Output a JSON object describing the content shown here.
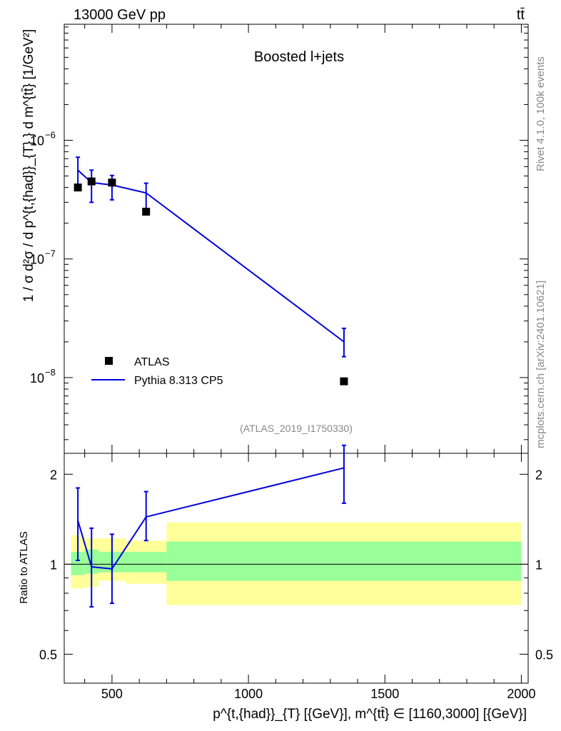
{
  "header": {
    "energy_label": "13000 GeV pp",
    "process_label": "tt̄"
  },
  "side_labels": {
    "rivet": "Rivet 4.1.0,  100k events",
    "mcplots": "mcplots.cern.ch [arXiv:2401.10621]"
  },
  "chart_data": [
    {
      "type": "line",
      "panel": "main",
      "title": "Boosted l+jets",
      "analysis_label": "(ATLAS_2019_I1750330)",
      "xlabel": "p^{t,{had}}_{T} [{GeV}], m^{tt̄} ∈ [1160,3000] [{GeV}]",
      "ylabel": "1 / σ d²σ / d p^{t,{had}}_{T} } d m^{tt̄} [1/GeV²]",
      "xlim": [
        325,
        2025
      ],
      "ylim": [
        2.3e-09,
        9.5e-06
      ],
      "yscale": "log",
      "x_ticks": [
        500,
        1000,
        1500,
        2000
      ],
      "x_tick_labels": [
        "500",
        "1000",
        "1500",
        "2000"
      ],
      "y_ticks": [
        1e-08,
        1e-07,
        1e-06
      ],
      "y_tick_labels": [
        "10",
        "10",
        "10"
      ],
      "y_tick_exponents": [
        "−8",
        "−7",
        "−6"
      ],
      "legend_position": "lower-left",
      "series": [
        {
          "name": "ATLAS",
          "style": "markers",
          "color": "#000000",
          "x": [
            375,
            425,
            500,
            625,
            1350
          ],
          "y": [
            4e-07,
            4.5e-07,
            4.4e-07,
            2.5e-07,
            9.3e-09
          ]
        },
        {
          "name": "Pythia 8.313 CP5",
          "style": "line",
          "color": "#0000dd",
          "x": [
            375,
            425,
            500,
            625,
            1350
          ],
          "y": [
            5.6e-07,
            4.4e-07,
            4.2e-07,
            3.6e-07,
            2e-08
          ],
          "y_err_low": [
            4e-07,
            3e-07,
            3.15e-07,
            2.6e-07,
            1.5e-08
          ],
          "y_err_high": [
            7.2e-07,
            5.6e-07,
            5.05e-07,
            4.35e-07,
            2.6e-08
          ]
        }
      ]
    },
    {
      "type": "line",
      "panel": "ratio",
      "ylabel": "Ratio to ATLAS",
      "xlim": [
        325,
        2025
      ],
      "ylim": [
        0.4,
        2.35
      ],
      "yscale": "log",
      "y_ticks": [
        0.5,
        1,
        2
      ],
      "y_tick_labels": [
        "0.5",
        "1",
        "2"
      ],
      "reference_line": 1,
      "bands": {
        "edges": [
          350,
          400,
          450,
          550,
          700,
          2000
        ],
        "inner_low": [
          0.92,
          0.93,
          0.94,
          0.94,
          0.88
        ],
        "inner_high": [
          1.1,
          1.12,
          1.1,
          1.1,
          1.19
        ],
        "outer_low": [
          0.83,
          0.84,
          0.88,
          0.86,
          0.73
        ],
        "outer_high": [
          1.25,
          1.22,
          1.22,
          1.2,
          1.38
        ],
        "inner_color": "#99ff99",
        "outer_color": "#ffff99"
      },
      "series": [
        {
          "name": "Pythia 8.313 CP5",
          "color": "#0000dd",
          "x": [
            375,
            425,
            500,
            625,
            1350
          ],
          "y": [
            1.4,
            0.98,
            0.965,
            1.44,
            2.1
          ],
          "y_err_low": [
            1.03,
            0.72,
            0.74,
            1.2,
            1.6
          ],
          "y_err_high": [
            1.8,
            1.32,
            1.26,
            1.75,
            2.5
          ]
        }
      ]
    }
  ]
}
